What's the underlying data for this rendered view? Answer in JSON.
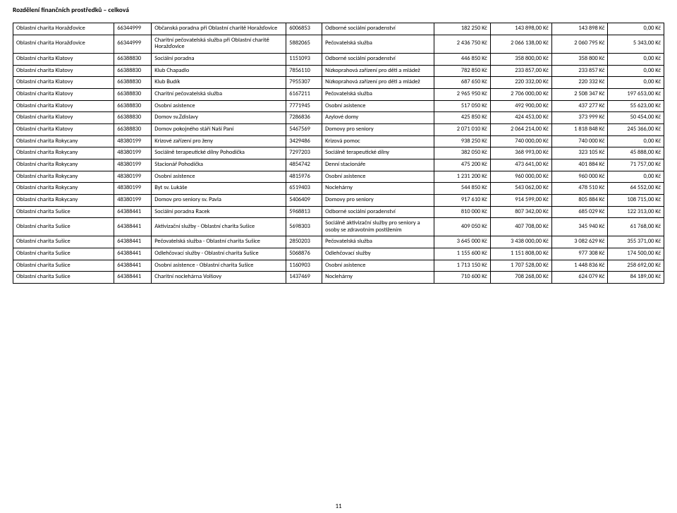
{
  "title": "Rozdělení finančních prostředků – celková",
  "pageNumber": "11",
  "columns": [
    {
      "key": "org",
      "width": "135"
    },
    {
      "key": "ico",
      "width": "50"
    },
    {
      "key": "service",
      "width": "180"
    },
    {
      "key": "code",
      "width": "48"
    },
    {
      "key": "type",
      "width": "150"
    },
    {
      "key": "amt1",
      "width": "75"
    },
    {
      "key": "amt2",
      "width": "82"
    },
    {
      "key": "amt3",
      "width": "75"
    },
    {
      "key": "amt4",
      "width": "75"
    }
  ],
  "rows": [
    {
      "org": "Oblastní charita Horažďovice",
      "ico": "66344999",
      "service": "Občanská poradna při Oblastní charitě Horažďovice",
      "code": "6006853",
      "type": "Odborné sociální poradenství",
      "amt1": "182 250 Kč",
      "amt2": "143 898,00 Kč",
      "amt3": "143 898 Kč",
      "amt4": "0,00 Kč"
    },
    {
      "org": "Oblastní charita Horažďovice",
      "ico": "66344999",
      "service": "Charitní pečovatelská služba při Oblastní charitě Horažďovice",
      "code": "5882065",
      "type": "Pečovatelská služba",
      "amt1": "2 436 750 Kč",
      "amt2": "2 066 138,00 Kč",
      "amt3": "2 060 795 Kč",
      "amt4": "5 343,00 Kč"
    },
    {
      "org": "Oblastní charita Klatovy",
      "ico": "66388830",
      "service": "Sociální poradna",
      "code": "1151093",
      "type": "Odborné sociální poradenství",
      "amt1": "446 850 Kč",
      "amt2": "358 800,00 Kč",
      "amt3": "358 800 Kč",
      "amt4": "0,00 Kč"
    },
    {
      "org": "Oblastní charita Klatovy",
      "ico": "66388830",
      "service": "Klub Chapadlo",
      "code": "7856110",
      "type": "Nízkoprahová zařízení pro děti a mládež",
      "amt1": "782 850 Kč",
      "amt2": "233 857,00 Kč",
      "amt3": "233 857 Kč",
      "amt4": "0,00 Kč"
    },
    {
      "org": "Oblastní charita Klatovy",
      "ico": "66388830",
      "service": "Klub Budík",
      "code": "7955307",
      "type": "Nízkoprahová zařízení pro děti a mládež",
      "amt1": "687 650 Kč",
      "amt2": "220 332,00 Kč",
      "amt3": "220 332 Kč",
      "amt4": "0,00 Kč"
    },
    {
      "org": "Oblastní charita Klatovy",
      "ico": "66388830",
      "service": "Charitní pečovatelská služba",
      "code": "6167211",
      "type": "Pečovatelská služba",
      "amt1": "2 965 950 Kč",
      "amt2": "2 706 000,00 Kč",
      "amt3": "2 508 347 Kč",
      "amt4": "197 653,00 Kč"
    },
    {
      "org": "Oblastní charita Klatovy",
      "ico": "66388830",
      "service": "Osobní asistence",
      "code": "7771945",
      "type": "Osobní asistence",
      "amt1": "517 050 Kč",
      "amt2": "492 900,00 Kč",
      "amt3": "437 277 Kč",
      "amt4": "55 623,00 Kč"
    },
    {
      "org": "Oblastní charita Klatovy",
      "ico": "66388830",
      "service": "Domov sv.Zdislavy",
      "code": "7286836",
      "type": "Azylové domy",
      "amt1": "425 850 Kč",
      "amt2": "424 453,00 Kč",
      "amt3": "373 999 Kč",
      "amt4": "50 454,00 Kč"
    },
    {
      "org": "Oblastní charita Klatovy",
      "ico": "66388830",
      "service": "Domov pokojného stáří Naší Paní",
      "code": "5467569",
      "type": "Domovy pro seniory",
      "amt1": "2 071 010 Kč",
      "amt2": "2 064 214,00 Kč",
      "amt3": "1 818 848 Kč",
      "amt4": "245 366,00 Kč"
    },
    {
      "org": "Oblastní charita Rokycany",
      "ico": "48380199",
      "service": "Krizové zařízení pro ženy",
      "code": "3429486",
      "type": "Krizová pomoc",
      "amt1": "938 250 Kč",
      "amt2": "740 000,00 Kč",
      "amt3": "740 000 Kč",
      "amt4": "0,00 Kč"
    },
    {
      "org": "Oblastní charita Rokycany",
      "ico": "48380199",
      "service": "Sociálně terapeutické dílny Pohodička",
      "code": "7297203",
      "type": "Sociálně terapeutické dílny",
      "amt1": "382 050 Kč",
      "amt2": "368 993,00 Kč",
      "amt3": "323 105 Kč",
      "amt4": "45 888,00 Kč"
    },
    {
      "org": "Oblastní charita Rokycany",
      "ico": "48380199",
      "service": "Stacionář Pohodička",
      "code": "4854742",
      "type": "Denní stacionáře",
      "amt1": "475 200 Kč",
      "amt2": "473 641,00 Kč",
      "amt3": "401 884 Kč",
      "amt4": "71 757,00 Kč"
    },
    {
      "org": "Oblastní charita Rokycany",
      "ico": "48380199",
      "service": "Osobní asistence",
      "code": "4815976",
      "type": "Osobní asistence",
      "amt1": "1 231 200 Kč",
      "amt2": "960 000,00 Kč",
      "amt3": "960 000 Kč",
      "amt4": "0,00 Kč"
    },
    {
      "org": "Oblastní charita Rokycany",
      "ico": "48380199",
      "service": "Byt sv. Lukáše",
      "code": "6519403",
      "type": "Noclehárny",
      "amt1": "544 850 Kč",
      "amt2": "543 062,00 Kč",
      "amt3": "478 510 Kč",
      "amt4": "64 552,00 Kč"
    },
    {
      "org": "Oblastní charita Rokycany",
      "ico": "48380199",
      "service": "Domov pro seniory sv. Pavla",
      "code": "5406409",
      "type": "Domovy pro seniory",
      "amt1": "917 610 Kč",
      "amt2": "914 599,00 Kč",
      "amt3": "805 884 Kč",
      "amt4": "108 715,00 Kč"
    },
    {
      "org": "Oblastní charita Sušice",
      "ico": "64388441",
      "service": "Sociální poradna Racek",
      "code": "5968813",
      "type": "Odborné sociální poradenství",
      "amt1": "810 000 Kč",
      "amt2": "807 342,00 Kč",
      "amt3": "685 029 Kč",
      "amt4": "122 313,00 Kč"
    },
    {
      "org": "Oblastní charita Sušice",
      "ico": "64388441",
      "service": "Aktivizační služby - Oblastní charita Sušice",
      "code": "5698303",
      "type": "Sociálně aktivizační služby pro seniory a osoby se zdravotním postižením",
      "amt1": "409 050 Kč",
      "amt2": "407 708,00 Kč",
      "amt3": "345 940 Kč",
      "amt4": "61 768,00 Kč"
    },
    {
      "org": "Oblastní charita Sušice",
      "ico": "64388441",
      "service": "Pečovatelská služba - Oblastní charita Sušice",
      "code": "2850203",
      "type": "Pečovatelská služba",
      "amt1": "3 645 000 Kč",
      "amt2": "3 438 000,00 Kč",
      "amt3": "3 082 629 Kč",
      "amt4": "355 371,00 Kč"
    },
    {
      "org": "Oblastní charita Sušice",
      "ico": "64388441",
      "service": "Odlehčovací služby - Oblastní charita Sušice",
      "code": "5068876",
      "type": "Odlehčovací služby",
      "amt1": "1 155 600 Kč",
      "amt2": "1 151 808,00 Kč",
      "amt3": "977 308 Kč",
      "amt4": "174 500,00 Kč"
    },
    {
      "org": "Oblastní charita Sušice",
      "ico": "64388441",
      "service": "Osobní asistence - Oblastní charita Sušice",
      "code": "1160903",
      "type": "Osobní asistence",
      "amt1": "1 713 150 Kč",
      "amt2": "1 707 528,00 Kč",
      "amt3": "1 448 836 Kč",
      "amt4": "258 692,00 Kč"
    },
    {
      "org": "Oblastní charita Sušice",
      "ico": "64388441",
      "service": "Charitní noclehárna Volšovy",
      "code": "1437469",
      "type": "Noclehárny",
      "amt1": "710 600 Kč",
      "amt2": "708 268,00 Kč",
      "amt3": "624 079 Kč",
      "amt4": "84 189,00 Kč"
    }
  ]
}
